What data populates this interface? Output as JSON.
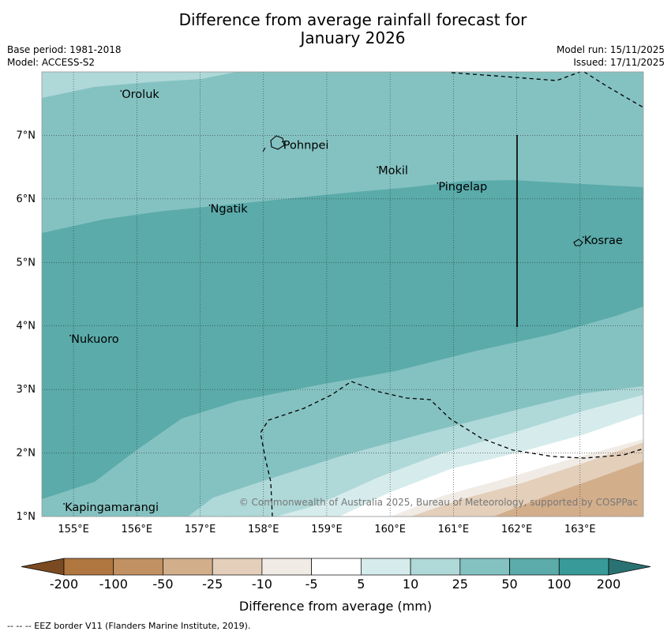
{
  "title_line1": "Difference from average rainfall forecast for",
  "title_line2": "January 2026",
  "base_period": "Base period: 1981-2018",
  "model": "Model: ACCESS-S2",
  "model_run": "Model run: 15/11/2025",
  "issued": "Issued: 17/11/2025",
  "copyright": "© Commonwealth of Australia 2025, Bureau of Meteorology, supported by COSPPac",
  "footer": "--  --  -- EEZ border V11 (Flanders Marine Institute, 2019).",
  "colorbar_title": "Difference from average (mm)",
  "map_data": {
    "lon_range": [
      154.5,
      164.0
    ],
    "lat_range": [
      1.0,
      8.0
    ],
    "x_ticks": [
      "155°E",
      "156°E",
      "157°E",
      "158°E",
      "159°E",
      "160°E",
      "161°E",
      "162°E",
      "163°E"
    ],
    "y_ticks": [
      "1°N",
      "2°N",
      "3°N",
      "4°N",
      "5°N",
      "6°N",
      "7°N"
    ],
    "places": [
      {
        "name": "Oroluk",
        "lon": 155.75,
        "lat": 7.6
      },
      {
        "name": "Pohnpei",
        "lon": 158.3,
        "lat": 6.8
      },
      {
        "name": "Mokil",
        "lon": 159.8,
        "lat": 6.4
      },
      {
        "name": "Pingelap",
        "lon": 160.75,
        "lat": 6.15
      },
      {
        "name": "Ngatik",
        "lon": 157.15,
        "lat": 5.8
      },
      {
        "name": "Kosrae",
        "lon": 163.05,
        "lat": 5.3
      },
      {
        "name": "Nukuoro",
        "lon": 154.95,
        "lat": 3.75
      },
      {
        "name": "Kapingamarangi",
        "lon": 154.85,
        "lat": 1.1
      }
    ]
  },
  "colorbar": {
    "ticks": [
      "-200",
      "-100",
      "-50",
      "-25",
      "-10",
      "-5",
      "5",
      "10",
      "25",
      "50",
      "100",
      "200"
    ],
    "colors": [
      "#7a4a22",
      "#b07640",
      "#c29163",
      "#d3ae8b",
      "#e3cfba",
      "#f1ebe6",
      "#ffffff",
      "#d6ecec",
      "#afd8d8",
      "#84c2c1",
      "#5aabaa",
      "#389a99",
      "#2a7272"
    ]
  }
}
